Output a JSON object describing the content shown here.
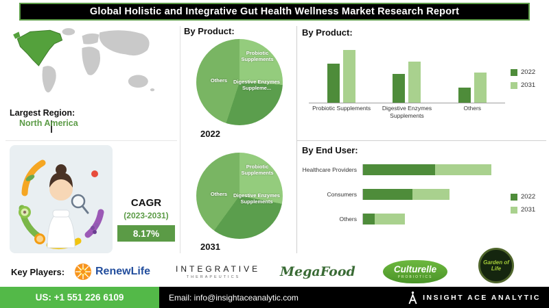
{
  "palette": {
    "accent_green": "#5b9b46",
    "dark_green": "#4e8c3a",
    "light_green": "#a9d18e",
    "footer_green": "#53b948"
  },
  "header": {
    "title": "Global Holistic and Integrative Gut Health Wellness Market Research Report"
  },
  "region": {
    "label": "Largest Region:",
    "value": "North America"
  },
  "cagr": {
    "label": "CAGR",
    "period": "(2023-2031)",
    "value": "8.17%"
  },
  "sections": {
    "by_product_mid": "By Product:",
    "by_product_right": "By Product:",
    "by_end_user": "By End User:"
  },
  "chart_data": [
    {
      "type": "pie",
      "title": "By Product - 2022",
      "year_label": "2022",
      "labels": [
        "Probiotic Supplements",
        "Digestive Enzymes Suppleme...",
        "Others"
      ],
      "values": [
        26,
        29,
        45
      ],
      "colors": [
        "#94cc7d",
        "#5b9e4d",
        "#79b563"
      ]
    },
    {
      "type": "pie",
      "title": "By Product - 2031",
      "year_label": "2031",
      "labels": [
        "Probiotic Supplements",
        "Digestive Enzymes Supplements",
        "Others"
      ],
      "values": [
        28,
        32,
        40
      ],
      "colors": [
        "#94cc7d",
        "#5b9e4d",
        "#79b563"
      ]
    },
    {
      "type": "bar",
      "title": "By Product",
      "categories": [
        "Probiotic Supplements",
        "Digestive Enzymes Supplements",
        "Others"
      ],
      "series": [
        {
          "name": "2022",
          "color": "#4e8c3a",
          "values": [
            52,
            38,
            20
          ]
        },
        {
          "name": "2031",
          "color": "#a9d18e",
          "values": [
            70,
            55,
            40
          ]
        }
      ],
      "ymax": 80,
      "legend_position": "right",
      "grid": false
    },
    {
      "type": "bar-horizontal",
      "title": "By End User",
      "categories": [
        "Healthcare Providers",
        "Consumers",
        "Others"
      ],
      "series": [
        {
          "name": "2022",
          "color": "#4e8c3a",
          "values": [
            48,
            33,
            8
          ]
        },
        {
          "name": "2031",
          "color": "#a9d18e",
          "values": [
            38,
            25,
            20
          ]
        }
      ],
      "xmax": 95,
      "legend_position": "right",
      "grid": false
    }
  ],
  "key_players": {
    "label": "Key Players:"
  },
  "logos": {
    "renewlife": "RenewLife",
    "integrative_line1": "INTEGRATIVE",
    "integrative_line2": "THERAPEUTICS",
    "megafood": "MegaFood",
    "culturelle": "Culturelle",
    "culturelle_sub": "PROBIOTICS",
    "gardenoflife": "Garden of Life"
  },
  "footer": {
    "phone": "US: +1 551 226 6109",
    "email": "Email: info@insightaceanalytic.com",
    "brand": "INSIGHT ACE ANALYTIC"
  }
}
